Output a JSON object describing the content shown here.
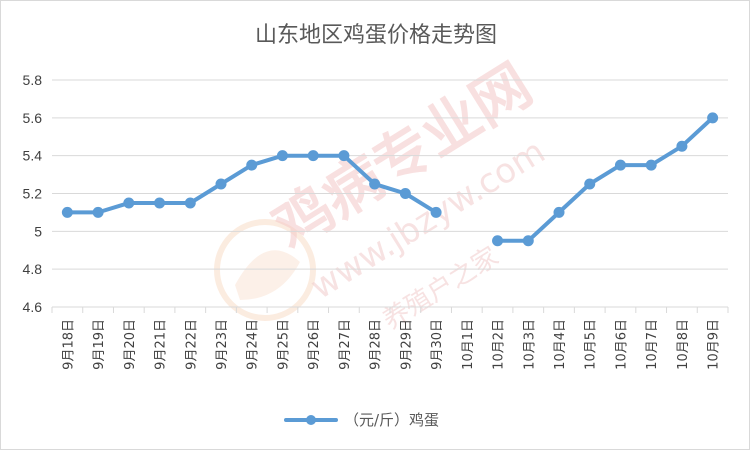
{
  "chart_data": {
    "type": "line",
    "title": "山东地区鸡蛋价格走势图",
    "categories": [
      "9月18日",
      "9月19日",
      "9月20日",
      "9月21日",
      "9月22日",
      "9月23日",
      "9月24日",
      "9月25日",
      "9月26日",
      "9月27日",
      "9月28日",
      "9月29日",
      "9月30日",
      "10月1日",
      "10月2日",
      "10月3日",
      "10月4日",
      "10月5日",
      "10月6日",
      "10月7日",
      "10月8日",
      "10月9日"
    ],
    "series": [
      {
        "name": "（元/斤）鸡蛋",
        "values": [
          5.1,
          5.1,
          5.15,
          5.15,
          5.15,
          5.25,
          5.35,
          5.4,
          5.4,
          5.4,
          5.25,
          5.2,
          5.1,
          null,
          4.95,
          4.95,
          5.1,
          5.25,
          5.35,
          5.35,
          5.45,
          5.6
        ]
      }
    ],
    "ylim": [
      4.6,
      5.8
    ],
    "yticks": [
      4.6,
      4.8,
      5,
      5.2,
      5.4,
      5.6,
      5.8
    ],
    "ytick_labels": [
      "4.6",
      "4.8",
      "5",
      "5.2",
      "5.4",
      "5.6",
      "5.8"
    ],
    "xlabel": "",
    "ylabel": "",
    "grid": true,
    "legend_position": "bottom",
    "colors": {
      "series": "#5b9bd5",
      "grid": "#d9d9d9",
      "text": "#595959"
    }
  },
  "watermark": {
    "main": "鸡病专业网",
    "url": "www.jbzyw.com",
    "sub": "养殖户之家"
  }
}
